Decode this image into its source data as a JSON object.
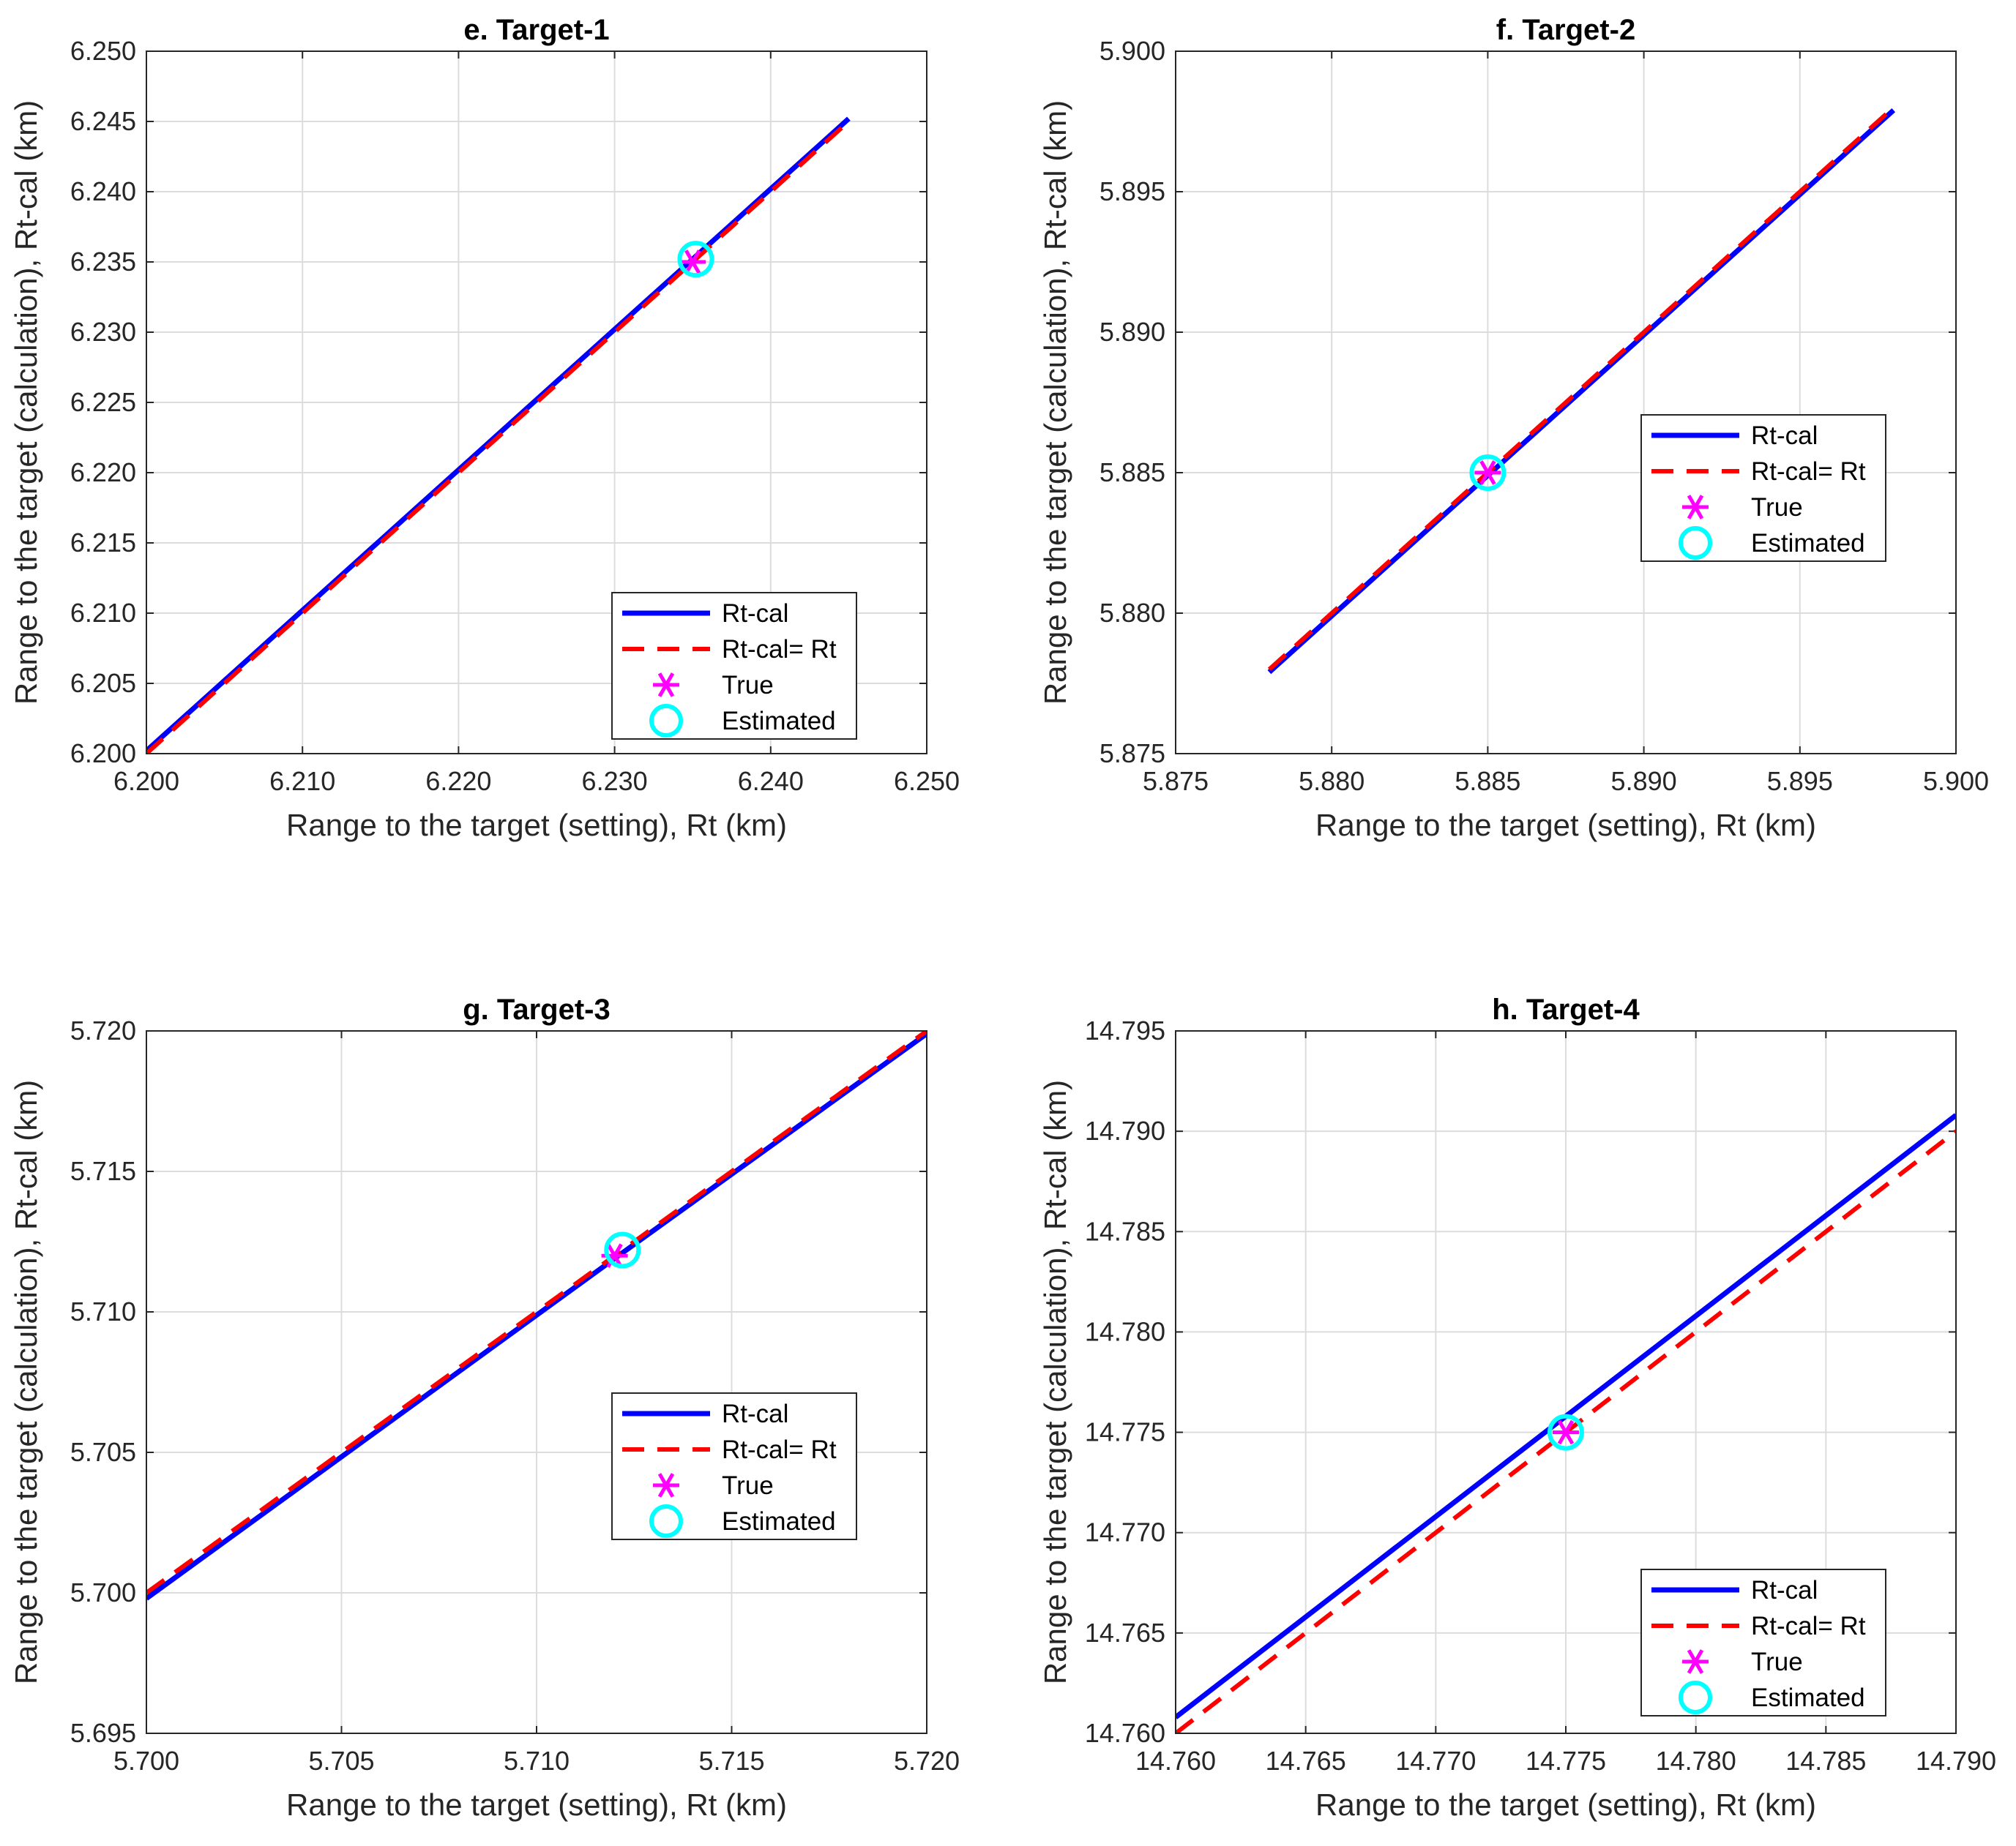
{
  "chart_data": [
    {
      "type": "line",
      "title": "e. Target-1",
      "xlabel": "Range to the target (setting), Rt (km)",
      "ylabel": "Range to the target (calculation), Rt-cal (km)",
      "xlim": [
        6.2,
        6.25
      ],
      "ylim": [
        6.2,
        6.25
      ],
      "xticks": [
        "6.200",
        "6.210",
        "6.220",
        "6.230",
        "6.240",
        "6.250"
      ],
      "yticks": [
        "6.200",
        "6.205",
        "6.210",
        "6.215",
        "6.220",
        "6.225",
        "6.230",
        "6.235",
        "6.240",
        "6.245",
        "6.250"
      ],
      "grid": true,
      "legend_position": "bottom-right",
      "series": [
        {
          "name": "Rt-cal",
          "style": "solid",
          "color": "#0000ff",
          "x": [
            6.2,
            6.245
          ],
          "y": [
            6.2002,
            6.2452
          ]
        },
        {
          "name": "Rt-cal= Rt",
          "style": "dashed",
          "color": "#ff0000",
          "x": [
            6.2,
            6.245
          ],
          "y": [
            6.2,
            6.245
          ]
        },
        {
          "name": "True",
          "marker": "asterisk",
          "color": "#ff00ff",
          "x": [
            6.235
          ],
          "y": [
            6.235
          ]
        },
        {
          "name": "Estimated",
          "marker": "circle",
          "color": "#00ffff",
          "x": [
            6.2352
          ],
          "y": [
            6.2352
          ]
        }
      ]
    },
    {
      "type": "line",
      "title": "f. Target-2",
      "xlabel": "Range to the target (setting), Rt (km)",
      "ylabel": "Range to the target (calculation), Rt-cal (km)",
      "xlim": [
        5.875,
        5.9
      ],
      "ylim": [
        5.875,
        5.9
      ],
      "xticks": [
        "5.875",
        "5.880",
        "5.885",
        "5.890",
        "5.895",
        "5.900"
      ],
      "yticks": [
        "5.875",
        "5.880",
        "5.885",
        "5.890",
        "5.895",
        "5.900"
      ],
      "grid": true,
      "legend_position": "center-right",
      "series": [
        {
          "name": "Rt-cal",
          "style": "solid",
          "color": "#0000ff",
          "x": [
            5.878,
            5.898
          ],
          "y": [
            5.8779,
            5.8979
          ]
        },
        {
          "name": "Rt-cal= Rt",
          "style": "dashed",
          "color": "#ff0000",
          "x": [
            5.878,
            5.898
          ],
          "y": [
            5.878,
            5.898
          ]
        },
        {
          "name": "True",
          "marker": "asterisk",
          "color": "#ff00ff",
          "x": [
            5.885
          ],
          "y": [
            5.885
          ]
        },
        {
          "name": "Estimated",
          "marker": "circle",
          "color": "#00ffff",
          "x": [
            5.885
          ],
          "y": [
            5.885
          ]
        }
      ]
    },
    {
      "type": "line",
      "title": "g. Target-3",
      "xlabel": "Range to the target (setting), Rt (km)",
      "ylabel": "Range to the target (calculation), Rt-cal (km)",
      "xlim": [
        5.7,
        5.72
      ],
      "ylim": [
        5.695,
        5.72
      ],
      "xticks": [
        "5.700",
        "5.705",
        "5.710",
        "5.715",
        "5.720"
      ],
      "yticks": [
        "5.695",
        "5.700",
        "5.705",
        "5.710",
        "5.715",
        "5.720"
      ],
      "grid": true,
      "legend_position": "bottom-right",
      "series": [
        {
          "name": "Rt-cal",
          "style": "solid",
          "color": "#0000ff",
          "x": [
            5.7,
            5.712,
            5.72
          ],
          "y": [
            5.6998,
            5.7119,
            5.7199
          ]
        },
        {
          "name": "Rt-cal= Rt",
          "style": "dashed",
          "color": "#ff0000",
          "x": [
            5.7,
            5.72
          ],
          "y": [
            5.7,
            5.72
          ]
        },
        {
          "name": "True",
          "marker": "asterisk",
          "color": "#ff00ff",
          "x": [
            5.712
          ],
          "y": [
            5.712
          ]
        },
        {
          "name": "Estimated",
          "marker": "circle",
          "color": "#00ffff",
          "x": [
            5.7122
          ],
          "y": [
            5.7122
          ]
        }
      ]
    },
    {
      "type": "line",
      "title": "h. Target-4",
      "xlabel": "Range to the target (setting), Rt (km)",
      "ylabel": "Range to the target (calculation), Rt-cal (km)",
      "xlim": [
        14.76,
        14.79
      ],
      "ylim": [
        14.76,
        14.795
      ],
      "xticks": [
        "14.760",
        "14.765",
        "14.770",
        "14.775",
        "14.780",
        "14.785",
        "14.790"
      ],
      "yticks": [
        "14.760",
        "14.765",
        "14.770",
        "14.775",
        "14.780",
        "14.785",
        "14.790",
        "14.795"
      ],
      "grid": true,
      "legend_position": "bottom-right",
      "series": [
        {
          "name": "Rt-cal",
          "style": "solid",
          "color": "#0000ff",
          "x": [
            14.76,
            14.79
          ],
          "y": [
            14.7608,
            14.7908
          ]
        },
        {
          "name": "Rt-cal= Rt",
          "style": "dashed",
          "color": "#ff0000",
          "x": [
            14.76,
            14.79
          ],
          "y": [
            14.76,
            14.79
          ]
        },
        {
          "name": "True",
          "marker": "asterisk",
          "color": "#ff00ff",
          "x": [
            14.775
          ],
          "y": [
            14.775
          ]
        },
        {
          "name": "Estimated",
          "marker": "circle",
          "color": "#00ffff",
          "x": [
            14.775
          ],
          "y": [
            14.775
          ]
        }
      ]
    }
  ]
}
